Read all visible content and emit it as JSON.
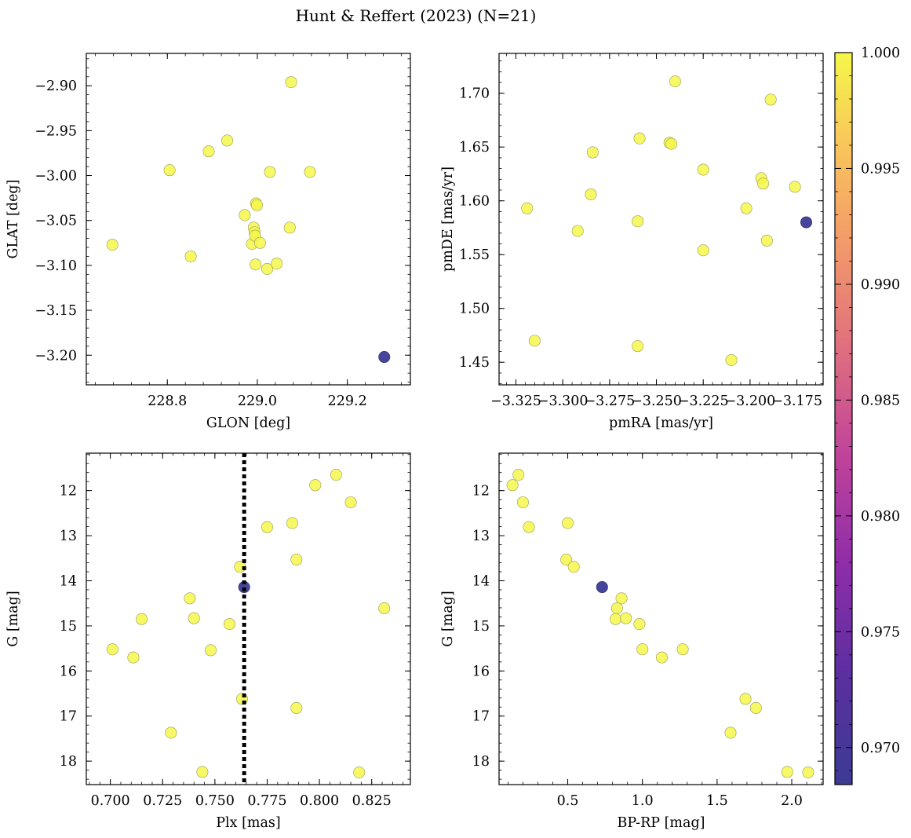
{
  "figure": {
    "title": "Hunt & Reffert (2023) (N=21)"
  },
  "colorbar": {
    "min": 0.9684,
    "max": 1.0,
    "ticks": [
      0.97,
      0.975,
      0.98,
      0.985,
      0.99,
      0.995,
      1.0
    ],
    "tick_labels": [
      "0.970",
      "0.975",
      "0.980",
      "0.985",
      "0.990",
      "0.995",
      "1.000"
    ],
    "colormap": "plasma"
  },
  "chart_data": [
    {
      "type": "scatter",
      "xlabel": "GLON [deg]",
      "ylabel": "GLAT [deg]",
      "xlim": [
        228.62,
        229.34
      ],
      "ylim": [
        -3.233,
        -2.864
      ],
      "y_inverted": false,
      "xticks": [
        228.8,
        229.0,
        229.2
      ],
      "xtick_labels": [
        "228.8",
        "229.0",
        "229.2"
      ],
      "yticks": [
        -3.2,
        -3.15,
        -3.1,
        -3.05,
        -3.0,
        -2.95,
        -2.9
      ],
      "ytick_labels": [
        "−3.20",
        "−3.15",
        "−3.10",
        "−3.05",
        "−3.00",
        "−2.95",
        "−2.90"
      ],
      "points": [
        {
          "x": 228.678,
          "y": -3.077,
          "p": 1.0
        },
        {
          "x": 228.805,
          "y": -2.994,
          "p": 1.0
        },
        {
          "x": 228.852,
          "y": -3.09,
          "p": 1.0
        },
        {
          "x": 228.892,
          "y": -2.973,
          "p": 1.0
        },
        {
          "x": 228.933,
          "y": -2.961,
          "p": 1.0
        },
        {
          "x": 228.972,
          "y": -3.044,
          "p": 1.0
        },
        {
          "x": 228.988,
          "y": -3.076,
          "p": 1.0
        },
        {
          "x": 228.992,
          "y": -3.058,
          "p": 1.0
        },
        {
          "x": 228.994,
          "y": -3.063,
          "p": 1.0
        },
        {
          "x": 228.995,
          "y": -3.067,
          "p": 1.0
        },
        {
          "x": 228.996,
          "y": -3.099,
          "p": 1.0
        },
        {
          "x": 228.997,
          "y": -3.031,
          "p": 1.0
        },
        {
          "x": 228.999,
          "y": -3.033,
          "p": 1.0
        },
        {
          "x": 229.006,
          "y": -3.075,
          "p": 1.0
        },
        {
          "x": 229.022,
          "y": -3.104,
          "p": 1.0
        },
        {
          "x": 229.028,
          "y": -2.996,
          "p": 1.0
        },
        {
          "x": 229.043,
          "y": -3.098,
          "p": 1.0
        },
        {
          "x": 229.072,
          "y": -3.058,
          "p": 1.0
        },
        {
          "x": 229.075,
          "y": -2.896,
          "p": 1.0
        },
        {
          "x": 229.117,
          "y": -2.996,
          "p": 1.0
        },
        {
          "x": 229.282,
          "y": -3.202,
          "p": 0.9684
        }
      ]
    },
    {
      "type": "scatter",
      "xlabel": "pmRA [mas/yr]",
      "ylabel": "pmDE [mas/yr]",
      "xlim": [
        -3.334,
        -3.161
      ],
      "ylim": [
        1.429,
        1.737
      ],
      "y_inverted": false,
      "xticks": [
        -3.325,
        -3.3,
        -3.275,
        -3.25,
        -3.225,
        -3.2,
        -3.175
      ],
      "xtick_labels": [
        "−3.325",
        "−3.300",
        "−3.275",
        "−3.250",
        "−3.225",
        "−3.200",
        "−3.175"
      ],
      "yticks": [
        1.45,
        1.5,
        1.55,
        1.6,
        1.65,
        1.7
      ],
      "ytick_labels": [
        "1.45",
        "1.50",
        "1.55",
        "1.60",
        "1.65",
        "1.70"
      ],
      "points": [
        {
          "x": -3.319,
          "y": 1.593,
          "p": 1.0
        },
        {
          "x": -3.315,
          "y": 1.47,
          "p": 1.0
        },
        {
          "x": -3.292,
          "y": 1.572,
          "p": 1.0
        },
        {
          "x": -3.284,
          "y": 1.645,
          "p": 1.0
        },
        {
          "x": -3.285,
          "y": 1.606,
          "p": 1.0
        },
        {
          "x": -3.259,
          "y": 1.658,
          "p": 1.0
        },
        {
          "x": -3.26,
          "y": 1.581,
          "p": 1.0
        },
        {
          "x": -3.26,
          "y": 1.465,
          "p": 1.0
        },
        {
          "x": -3.243,
          "y": 1.654,
          "p": 1.0
        },
        {
          "x": -3.242,
          "y": 1.653,
          "p": 1.0
        },
        {
          "x": -3.24,
          "y": 1.711,
          "p": 1.0
        },
        {
          "x": -3.225,
          "y": 1.629,
          "p": 1.0
        },
        {
          "x": -3.225,
          "y": 1.554,
          "p": 1.0
        },
        {
          "x": -3.21,
          "y": 1.452,
          "p": 1.0
        },
        {
          "x": -3.202,
          "y": 1.593,
          "p": 1.0
        },
        {
          "x": -3.194,
          "y": 1.621,
          "p": 1.0
        },
        {
          "x": -3.193,
          "y": 1.616,
          "p": 1.0
        },
        {
          "x": -3.191,
          "y": 1.563,
          "p": 1.0
        },
        {
          "x": -3.189,
          "y": 1.694,
          "p": 1.0
        },
        {
          "x": -3.176,
          "y": 1.613,
          "p": 1.0
        },
        {
          "x": -3.17,
          "y": 1.58,
          "p": 0.9684
        }
      ]
    },
    {
      "type": "scatter",
      "xlabel": "Plx [mas]",
      "ylabel": "G [mag]",
      "xlim": [
        0.6885,
        0.8435
      ],
      "ylim": [
        11.17,
        18.52
      ],
      "y_inverted": true,
      "vline": 0.764,
      "xticks": [
        0.7,
        0.725,
        0.75,
        0.775,
        0.8,
        0.825
      ],
      "xtick_labels": [
        "0.700",
        "0.725",
        "0.750",
        "0.775",
        "0.800",
        "0.825"
      ],
      "yticks": [
        12,
        13,
        14,
        15,
        16,
        17,
        18
      ],
      "ytick_labels": [
        "12",
        "13",
        "14",
        "15",
        "16",
        "17",
        "18"
      ],
      "points": [
        {
          "x": 0.701,
          "y": 15.52,
          "p": 1.0
        },
        {
          "x": 0.711,
          "y": 15.7,
          "p": 1.0
        },
        {
          "x": 0.715,
          "y": 14.85,
          "p": 1.0
        },
        {
          "x": 0.729,
          "y": 17.37,
          "p": 1.0
        },
        {
          "x": 0.738,
          "y": 14.39,
          "p": 1.0
        },
        {
          "x": 0.74,
          "y": 14.83,
          "p": 1.0
        },
        {
          "x": 0.744,
          "y": 18.24,
          "p": 1.0
        },
        {
          "x": 0.748,
          "y": 15.54,
          "p": 1.0
        },
        {
          "x": 0.757,
          "y": 14.96,
          "p": 1.0
        },
        {
          "x": 0.762,
          "y": 13.69,
          "p": 1.0
        },
        {
          "x": 0.763,
          "y": 16.62,
          "p": 1.0
        },
        {
          "x": 0.764,
          "y": 14.14,
          "p": 0.9684
        },
        {
          "x": 0.775,
          "y": 12.81,
          "p": 1.0
        },
        {
          "x": 0.787,
          "y": 12.72,
          "p": 1.0
        },
        {
          "x": 0.789,
          "y": 13.53,
          "p": 1.0
        },
        {
          "x": 0.789,
          "y": 16.82,
          "p": 1.0
        },
        {
          "x": 0.798,
          "y": 11.88,
          "p": 1.0
        },
        {
          "x": 0.808,
          "y": 11.65,
          "p": 1.0
        },
        {
          "x": 0.815,
          "y": 12.26,
          "p": 1.0
        },
        {
          "x": 0.819,
          "y": 18.25,
          "p": 1.0
        },
        {
          "x": 0.831,
          "y": 14.61,
          "p": 1.0
        }
      ]
    },
    {
      "type": "scatter",
      "xlabel": "BP-RP [mag]",
      "ylabel": "G [mag]",
      "xlim": [
        0.04,
        2.21
      ],
      "ylim": [
        11.17,
        18.52
      ],
      "y_inverted": true,
      "xticks": [
        0.5,
        1.0,
        1.5,
        2.0
      ],
      "xtick_labels": [
        "0.5",
        "1.0",
        "1.5",
        "2.0"
      ],
      "yticks": [
        12,
        13,
        14,
        15,
        16,
        17,
        18
      ],
      "ytick_labels": [
        "12",
        "13",
        "14",
        "15",
        "16",
        "17",
        "18"
      ],
      "points": [
        {
          "x": 0.13,
          "y": 11.88,
          "p": 1.0
        },
        {
          "x": 0.17,
          "y": 11.65,
          "p": 1.0
        },
        {
          "x": 0.2,
          "y": 12.26,
          "p": 1.0
        },
        {
          "x": 0.24,
          "y": 12.81,
          "p": 1.0
        },
        {
          "x": 0.5,
          "y": 12.72,
          "p": 1.0
        },
        {
          "x": 0.49,
          "y": 13.53,
          "p": 1.0
        },
        {
          "x": 0.54,
          "y": 13.69,
          "p": 1.0
        },
        {
          "x": 0.73,
          "y": 14.14,
          "p": 0.9684
        },
        {
          "x": 0.86,
          "y": 14.39,
          "p": 1.0
        },
        {
          "x": 0.83,
          "y": 14.61,
          "p": 1.0
        },
        {
          "x": 0.82,
          "y": 14.85,
          "p": 1.0
        },
        {
          "x": 0.89,
          "y": 14.83,
          "p": 1.0
        },
        {
          "x": 0.98,
          "y": 14.96,
          "p": 1.0
        },
        {
          "x": 1.0,
          "y": 15.52,
          "p": 1.0
        },
        {
          "x": 1.13,
          "y": 15.7,
          "p": 1.0
        },
        {
          "x": 1.27,
          "y": 15.52,
          "p": 1.0
        },
        {
          "x": 1.59,
          "y": 17.37,
          "p": 1.0
        },
        {
          "x": 1.69,
          "y": 16.62,
          "p": 1.0
        },
        {
          "x": 1.76,
          "y": 16.82,
          "p": 1.0
        },
        {
          "x": 1.97,
          "y": 18.24,
          "p": 1.0
        },
        {
          "x": 2.11,
          "y": 18.25,
          "p": 1.0
        }
      ]
    }
  ]
}
